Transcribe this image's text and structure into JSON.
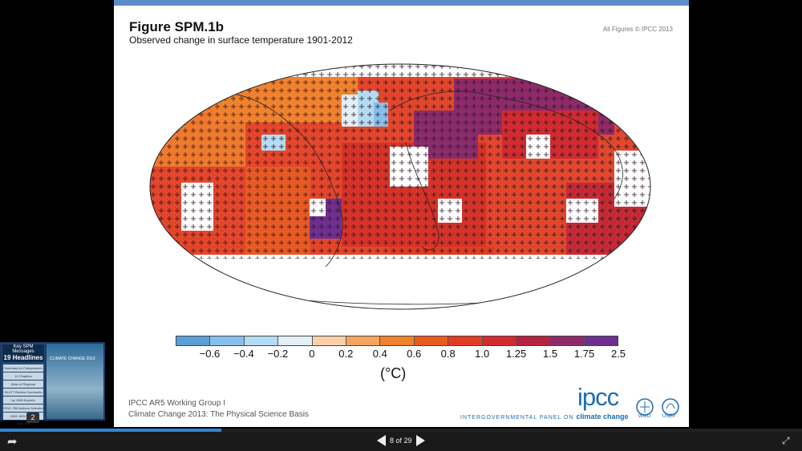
{
  "slide": {
    "title": "Figure SPM.1b",
    "subtitle": "Observed change in surface temperature 1901-2012",
    "copyright": "All Figures © IPCC 2013",
    "footer_line1": "IPCC AR5 Working Group I",
    "footer_line2": "Climate Change 2013: The Physical Science Basis",
    "logo_text": "ipcc",
    "logo_tag_prefix": "INTERGOVERNMENTAL PANEL ON ",
    "logo_tag_strong": "climate change",
    "wmo_label": "WMO",
    "unep_label": "UNEP"
  },
  "colorbar": {
    "colors": [
      "#5a9fd6",
      "#86c0ea",
      "#b3dbf3",
      "#e3eef6",
      "#fbd0a9",
      "#f7a55e",
      "#f0822e",
      "#ea5b22",
      "#e23c23",
      "#d32a2f",
      "#b5233f",
      "#8e2a6a",
      "#6e2f8e"
    ],
    "ticks": [
      "−0.6",
      "−0.4",
      "−0.2",
      "0",
      "0.2",
      "0.4",
      "0.6",
      "0.8",
      "1.0",
      "1.25",
      "1.5",
      "1.75",
      "2.5"
    ],
    "unit": "(°C)"
  },
  "thumbnail": {
    "headline_top": "Key SPM Messages",
    "headline_big": "19 Headlines",
    "rows": [
      "Summary for Policymakers",
      "14 Chapters",
      "Atlas of Regional Projections",
      "54,677 Review Comments",
      "by 1089 Experts",
      "2010: 259 Authors Selected",
      "2009: WGI Outline Approved"
    ],
    "cover_text": "CLIMATE CHANGE 2013",
    "badge": "2"
  },
  "navigation": {
    "page_indicator": "8 of 29",
    "progress_fraction": 0.276
  },
  "icons": {
    "share": "share-arrow-icon",
    "prev": "prev-slide-icon",
    "next": "next-slide-icon",
    "exit_fullscreen": "exit-fullscreen-icon"
  }
}
